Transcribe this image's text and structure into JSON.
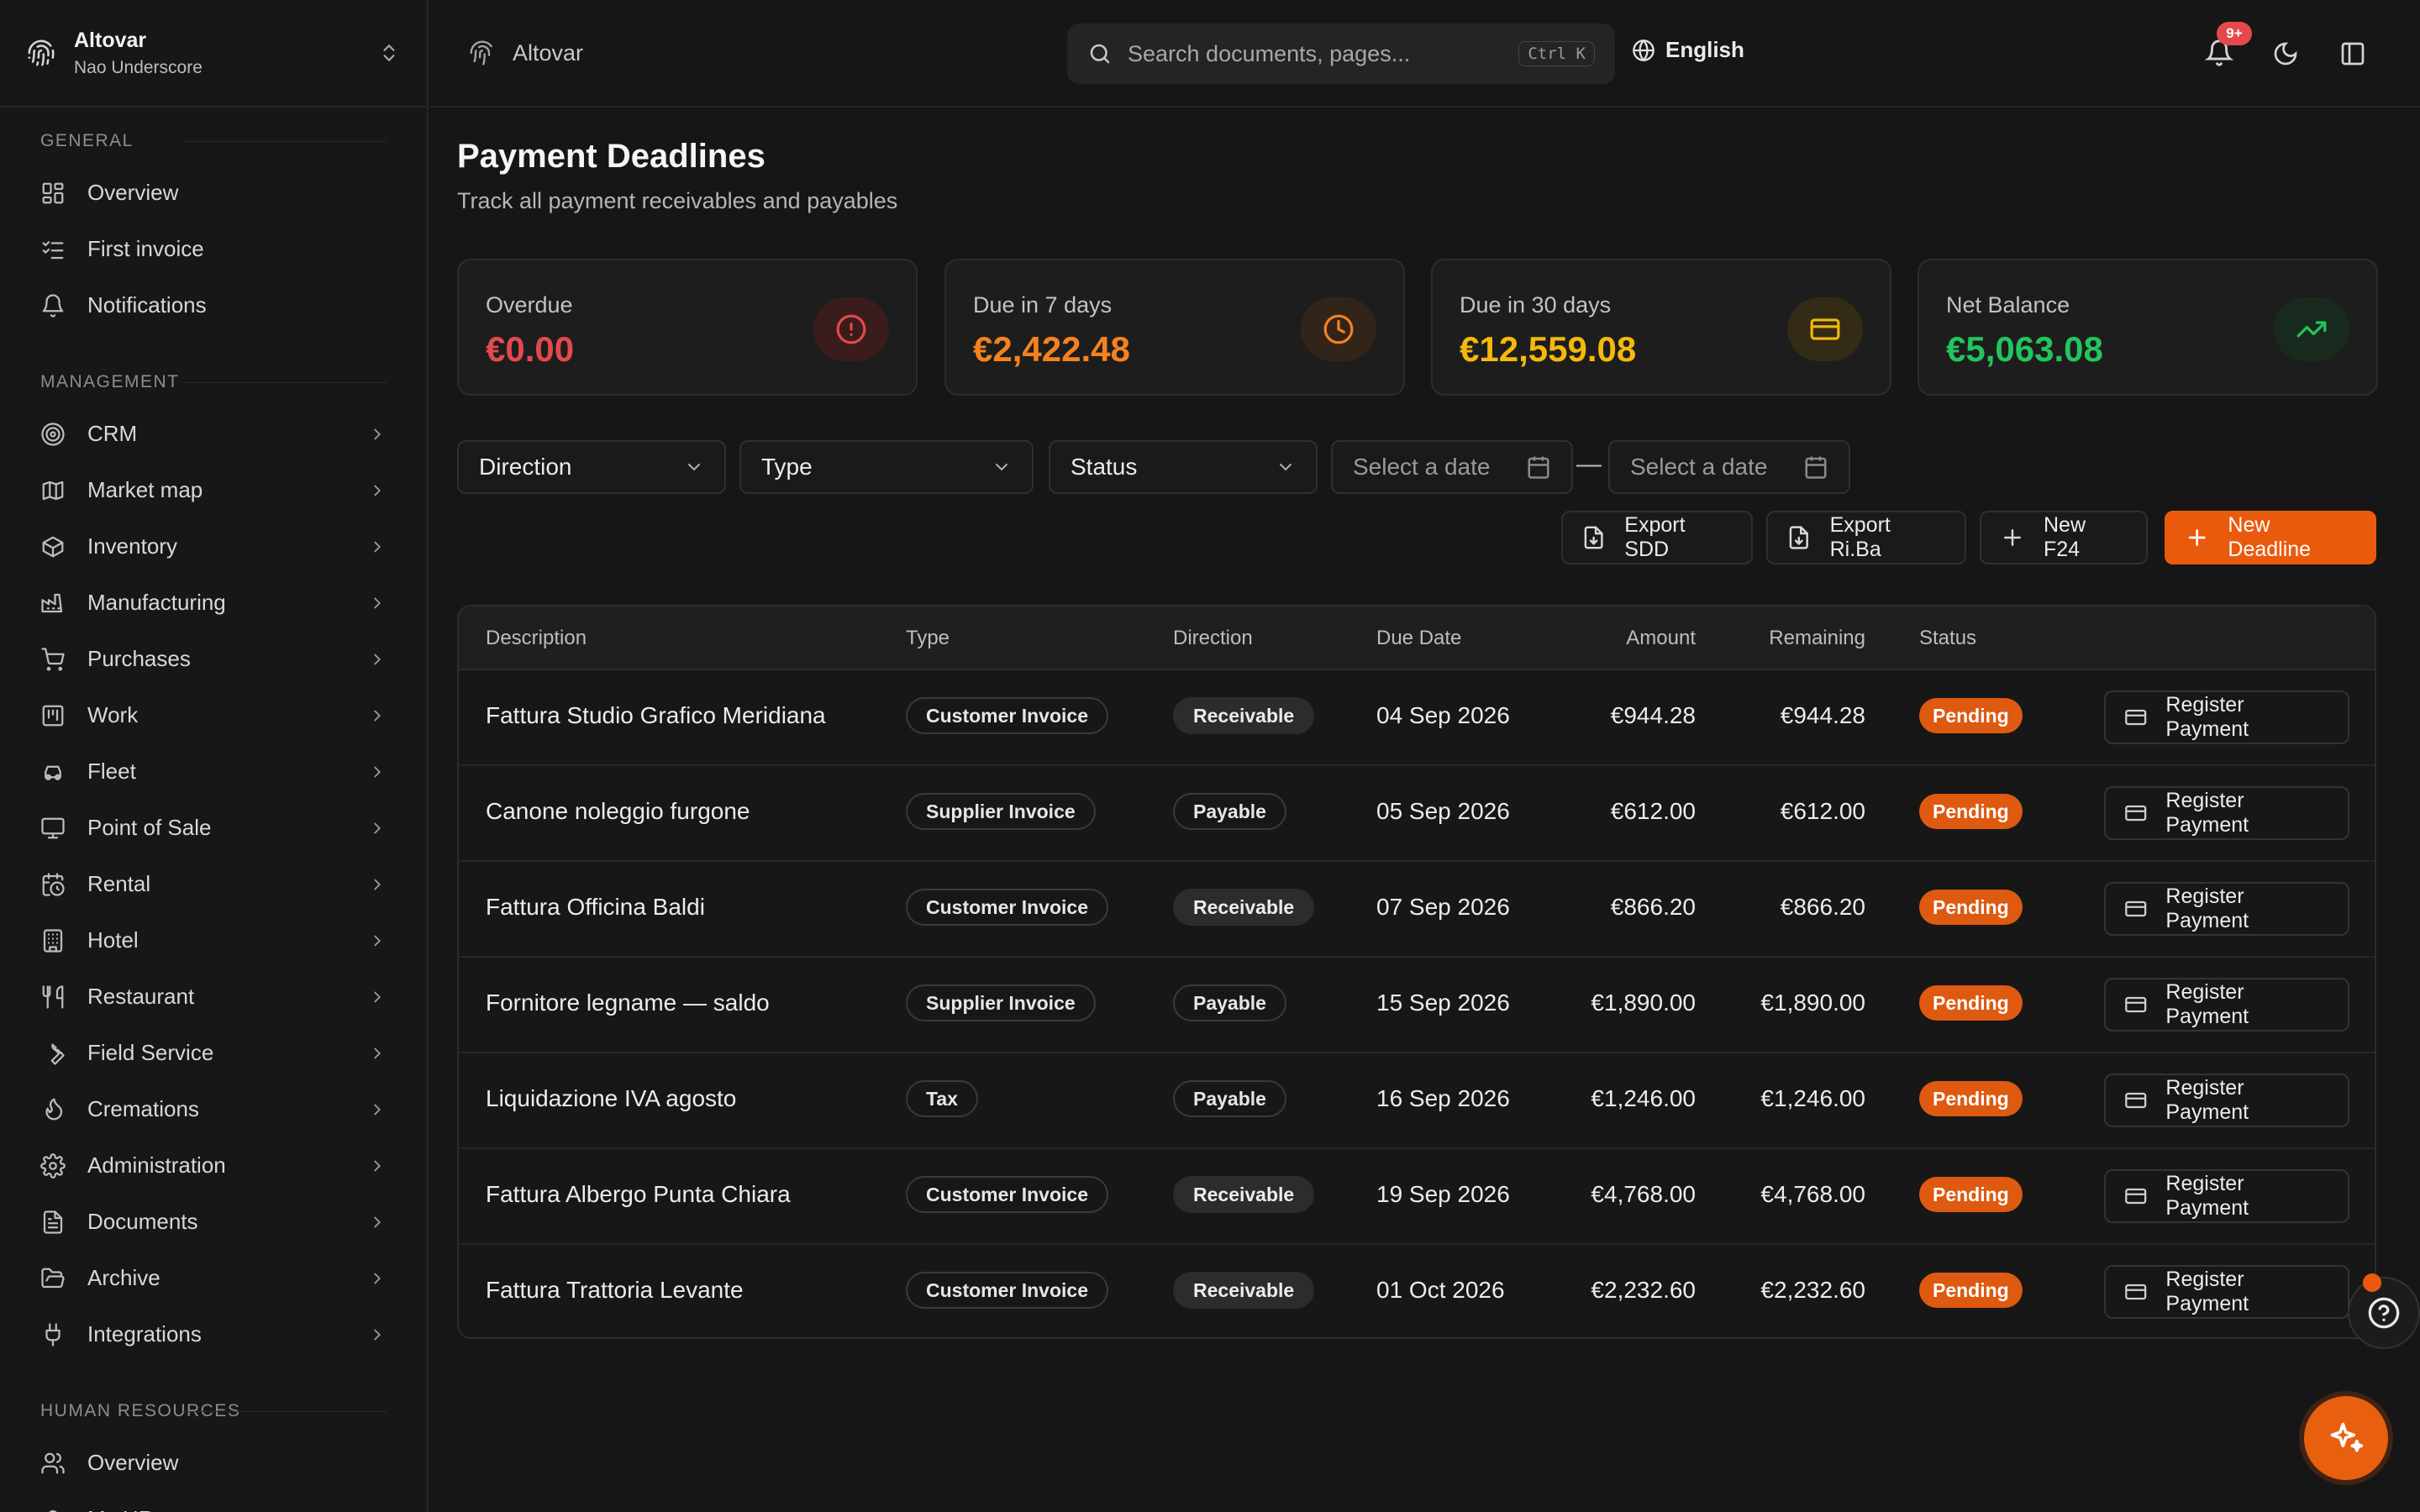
{
  "org": {
    "name": "Altovar",
    "subtitle": "Nao Underscore"
  },
  "sidebar": {
    "sections": [
      {
        "header": "GENERAL",
        "items": [
          {
            "label": "Overview",
            "icon": "dashboard-icon"
          },
          {
            "label": "First invoice",
            "icon": "checklist-icon"
          },
          {
            "label": "Notifications",
            "icon": "bell-icon"
          }
        ]
      },
      {
        "header": "MANAGEMENT",
        "items": [
          {
            "label": "CRM",
            "icon": "target-icon"
          },
          {
            "label": "Market map",
            "icon": "map-icon"
          },
          {
            "label": "Inventory",
            "icon": "package-icon"
          },
          {
            "label": "Manufacturing",
            "icon": "factory-icon"
          },
          {
            "label": "Purchases",
            "icon": "cart-icon"
          },
          {
            "label": "Work",
            "icon": "kanban-icon"
          },
          {
            "label": "Fleet",
            "icon": "car-icon"
          },
          {
            "label": "Point of Sale",
            "icon": "monitor-icon"
          },
          {
            "label": "Rental",
            "icon": "calendar-clock-icon"
          },
          {
            "label": "Hotel",
            "icon": "building-icon"
          },
          {
            "label": "Restaurant",
            "icon": "utensils-icon"
          },
          {
            "label": "Field Service",
            "icon": "wrench-icon"
          },
          {
            "label": "Cremations",
            "icon": "flame-icon"
          },
          {
            "label": "Administration",
            "icon": "gear-icon"
          },
          {
            "label": "Documents",
            "icon": "file-text-icon"
          },
          {
            "label": "Archive",
            "icon": "folder-open-icon"
          },
          {
            "label": "Integrations",
            "icon": "plug-icon"
          }
        ]
      },
      {
        "header": "HUMAN RESOURCES",
        "items": [
          {
            "label": "Overview",
            "icon": "users-icon"
          },
          {
            "label": "My HR",
            "icon": "user-icon"
          }
        ]
      }
    ]
  },
  "topbar": {
    "breadcrumb": "Altovar",
    "search_placeholder": "Search documents, pages...",
    "search_shortcut": "Ctrl K",
    "language": "English",
    "notifications_badge": "9+"
  },
  "page": {
    "title": "Payment Deadlines",
    "subtitle": "Track all payment receivables and payables"
  },
  "stats": [
    {
      "label": "Overdue",
      "value": "€0.00",
      "color": "#e5484d",
      "bubble": "#3a1c1c",
      "icon": "alert-circle-icon"
    },
    {
      "label": "Due in 7 days",
      "value": "€2,422.48",
      "color": "#f5821f",
      "bubble": "#33241a",
      "icon": "clock-icon"
    },
    {
      "label": "Due in 30 days",
      "value": "€12,559.08",
      "color": "#f5b80b",
      "bubble": "#332b16",
      "icon": "credit-card-icon"
    },
    {
      "label": "Net Balance",
      "value": "€5,063.08",
      "color": "#22c55e",
      "bubble": "#182a1e",
      "icon": "trending-up-icon"
    }
  ],
  "filters": {
    "direction": "Direction",
    "type": "Type",
    "status": "Status",
    "date_from_placeholder": "Select a date",
    "date_to_placeholder": "Select a date",
    "separator": "—"
  },
  "actions": {
    "export_sdd": "Export SDD",
    "export_riba": "Export Ri.Ba",
    "new_f24": "New F24",
    "new_deadline": "New Deadline"
  },
  "table": {
    "columns": [
      "Description",
      "Type",
      "Direction",
      "Due Date",
      "Amount",
      "Remaining",
      "Status"
    ],
    "register_label": "Register Payment",
    "rows": [
      {
        "description": "Fattura Studio Grafico Meridiana",
        "type": "Customer Invoice",
        "direction": "Receivable",
        "due": "04 Sep 2026",
        "amount": "€944.28",
        "remaining": "€944.28",
        "status": "Pending"
      },
      {
        "description": "Canone noleggio furgone",
        "type": "Supplier Invoice",
        "direction": "Payable",
        "due": "05 Sep 2026",
        "amount": "€612.00",
        "remaining": "€612.00",
        "status": "Pending"
      },
      {
        "description": "Fattura Officina Baldi",
        "type": "Customer Invoice",
        "direction": "Receivable",
        "due": "07 Sep 2026",
        "amount": "€866.20",
        "remaining": "€866.20",
        "status": "Pending"
      },
      {
        "description": "Fornitore legname — saldo",
        "type": "Supplier Invoice",
        "direction": "Payable",
        "due": "15 Sep 2026",
        "amount": "€1,890.00",
        "remaining": "€1,890.00",
        "status": "Pending"
      },
      {
        "description": "Liquidazione IVA agosto",
        "type": "Tax",
        "direction": "Payable",
        "due": "16 Sep 2026",
        "amount": "€1,246.00",
        "remaining": "€1,246.00",
        "status": "Pending"
      },
      {
        "description": "Fattura Albergo Punta Chiara",
        "type": "Customer Invoice",
        "direction": "Receivable",
        "due": "19 Sep 2026",
        "amount": "€4,768.00",
        "remaining": "€4,768.00",
        "status": "Pending"
      },
      {
        "description": "Fattura Trattoria Levante",
        "type": "Customer Invoice",
        "direction": "Receivable",
        "due": "01 Oct 2026",
        "amount": "€2,232.60",
        "remaining": "€2,232.60",
        "status": "Pending"
      }
    ]
  }
}
